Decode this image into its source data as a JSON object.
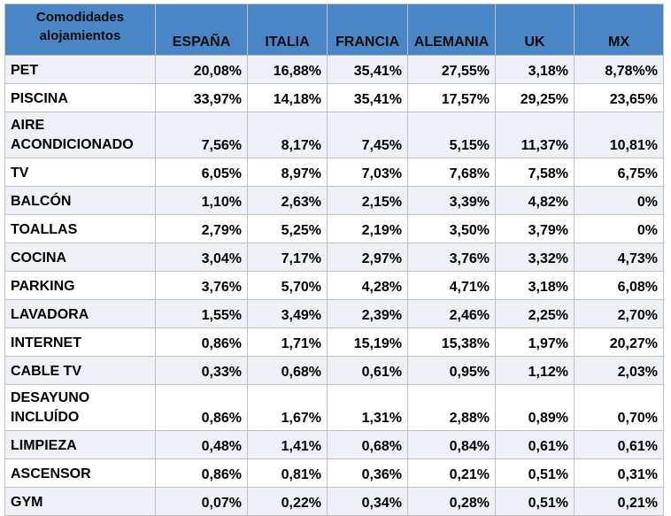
{
  "table": {
    "corner_header": "Comodidades alojamientos",
    "columns": [
      "ESPAÑA",
      "ITALIA",
      "FRANCIA",
      "ALEMANIA",
      "UK",
      "MX"
    ],
    "rows": [
      {
        "label": "PET",
        "values": [
          "20,08%",
          "16,88%",
          "35,41%",
          "27,55%",
          "3,18%",
          "8,78%%"
        ]
      },
      {
        "label": "PISCINA",
        "values": [
          "33,97%",
          "14,18%",
          "35,41%",
          "17,57%",
          "29,25%",
          "23,65%"
        ]
      },
      {
        "label": "AIRE ACONDICIONADO",
        "values": [
          "7,56%",
          "8,17%",
          "7,45%",
          "5,15%",
          "11,37%",
          "10,81%"
        ]
      },
      {
        "label": "TV",
        "values": [
          "6,05%",
          "8,97%",
          "7,03%",
          "7,68%",
          "7,58%",
          "6,75%"
        ]
      },
      {
        "label": "BALCÓN",
        "values": [
          "1,10%",
          "2,63%",
          "2,15%",
          "3,39%",
          "4,82%",
          "0%"
        ]
      },
      {
        "label": "TOALLAS",
        "values": [
          "2,79%",
          "5,25%",
          "2,19%",
          "3,50%",
          "3,79%",
          "0%"
        ]
      },
      {
        "label": "COCINA",
        "values": [
          "3,04%",
          "7,17%",
          "2,97%",
          "3,76%",
          "3,32%",
          "4,73%"
        ]
      },
      {
        "label": "PARKING",
        "values": [
          "3,76%",
          "5,70%",
          "4,28%",
          "4,71%",
          "3,18%",
          "6,08%"
        ]
      },
      {
        "label": "LAVADORA",
        "values": [
          "1,55%",
          "3,49%",
          "2,39%",
          "2,46%",
          "2,25%",
          "2,70%"
        ]
      },
      {
        "label": "INTERNET",
        "values": [
          "0,86%",
          "1,71%",
          "15,19%",
          "15,38%",
          "1,97%",
          "20,27%"
        ]
      },
      {
        "label": "CABLE TV",
        "values": [
          "0,33%",
          "0,68%",
          "0,61%",
          "0,95%",
          "1,12%",
          "2,03%"
        ]
      },
      {
        "label": "DESAYUNO INCLUÍDO",
        "values": [
          "0,86%",
          "1,67%",
          "1,31%",
          "2,88%",
          "0,89%",
          "0,70%"
        ]
      },
      {
        "label": "LIMPIEZA",
        "values": [
          "0,48%",
          "1,41%",
          "0,68%",
          "0,84%",
          "0,61%",
          "0,61%"
        ]
      },
      {
        "label": "ASCENSOR",
        "values": [
          "0,86%",
          "0,81%",
          "0,36%",
          "0,21%",
          "0,51%",
          "0,31%"
        ]
      },
      {
        "label": "GYM",
        "values": [
          "0,07%",
          "0,22%",
          "0,34%",
          "0,28%",
          "0,51%",
          "0,21%"
        ]
      }
    ]
  },
  "colors": {
    "header_bg": "#4a86c6",
    "row_band": "#eef1f7",
    "grid_line": "#bfbfbf"
  }
}
